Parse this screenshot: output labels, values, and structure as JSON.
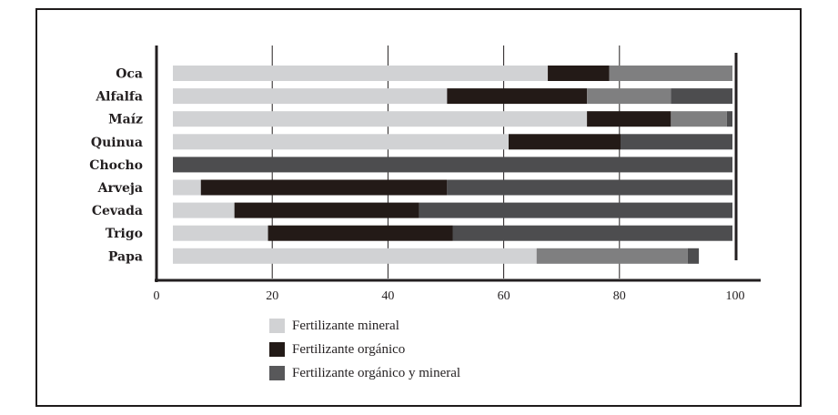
{
  "chart_data": {
    "type": "bar",
    "orientation": "horizontal",
    "stacked": true,
    "categories": [
      "Oca",
      "Alfalfa",
      "Maíz",
      "Quinua",
      "Chocho",
      "Arveja",
      "Cevada",
      "Trigo",
      "Papa"
    ],
    "series": [
      {
        "name": "Fertilizante mineral",
        "color": "#d1d2d4",
        "values": [
          67,
          49,
          74,
          60,
          0,
          5,
          11,
          17,
          65
        ]
      },
      {
        "name": "Fertilizante orgánico",
        "color": "#231a17",
        "values": [
          11,
          25,
          15,
          20,
          0,
          44,
          33,
          33,
          0
        ]
      },
      {
        "name": "Fertilizante orgánico y mineral",
        "color": "#7f7f80",
        "values": [
          22,
          15,
          10,
          0,
          0,
          0,
          0,
          0,
          27
        ]
      },
      {
        "name": "",
        "color": "#4d4d4f",
        "values": [
          0,
          11,
          1,
          20,
          100,
          51,
          56,
          50,
          2
        ]
      }
    ],
    "xlim": [
      0,
      100
    ],
    "xticks": [
      0,
      20,
      40,
      60,
      80,
      100
    ],
    "grid": "vertical",
    "legend_position": "bottom-center",
    "title": "",
    "xlabel": "",
    "ylabel": ""
  },
  "legend": [
    {
      "label": "Fertilizante mineral",
      "color": "#d1d2d4"
    },
    {
      "label": "Fertilizante orgánico",
      "color": "#231a17"
    },
    {
      "label": "Fertilizante orgánico y mineral",
      "color": "#58585a"
    }
  ]
}
